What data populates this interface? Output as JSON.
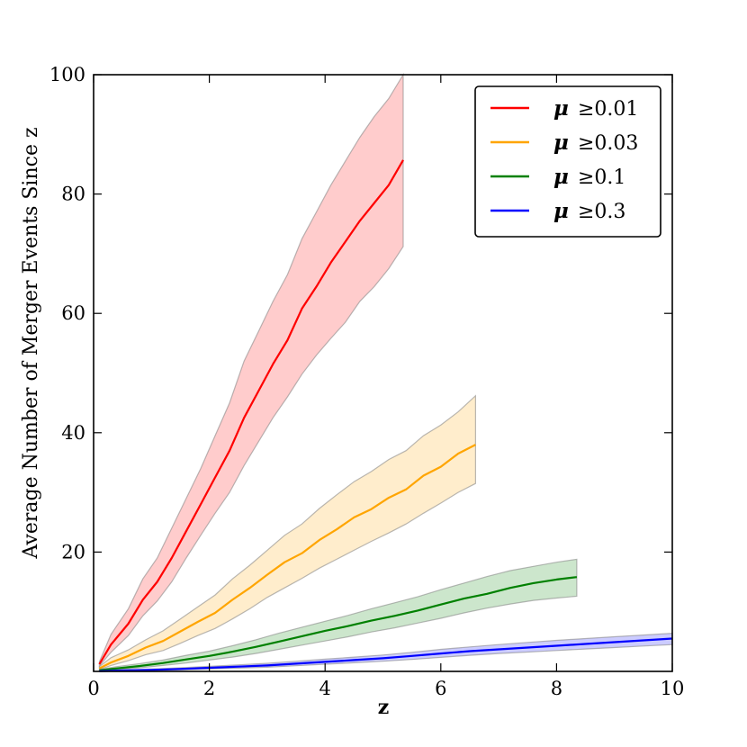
{
  "chart_data": {
    "type": "line",
    "title": "",
    "xlabel": "z",
    "ylabel": "Average Number of Merger Events Since z",
    "xlim": [
      0,
      10
    ],
    "ylim": [
      0,
      100
    ],
    "xticks": [
      "0",
      "2",
      "4",
      "6",
      "8",
      "10"
    ],
    "yticks": [
      "20",
      "40",
      "60",
      "80",
      "100"
    ],
    "legend_position": "top-right",
    "grid": false,
    "series": [
      {
        "name": "μ ≥0.01",
        "legend_symbol": "μ",
        "legend_label": "≥0.01",
        "color": "#ff0000",
        "band_color": "#ff0000",
        "x": [
          0.1,
          0.3,
          0.6,
          0.85,
          1.1,
          1.35,
          1.6,
          1.85,
          2.1,
          2.35,
          2.6,
          2.85,
          3.1,
          3.35,
          3.6,
          3.85,
          4.1,
          4.35,
          4.6,
          4.85,
          5.1,
          5.35
        ],
        "y": [
          1.2,
          4.5,
          8.0,
          12.0,
          15.0,
          19.0,
          23.5,
          28.0,
          32.5,
          37.0,
          42.5,
          47.0,
          51.5,
          55.5,
          60.8,
          64.5,
          68.5,
          72.0,
          75.5,
          78.5,
          81.5,
          85.7
        ],
        "lower": [
          0.9,
          3.2,
          6.0,
          9.3,
          11.8,
          15.0,
          19.0,
          22.8,
          26.5,
          30.0,
          34.5,
          38.5,
          42.5,
          46.0,
          49.8,
          53.0,
          55.8,
          58.5,
          62.0,
          64.5,
          67.5,
          71.2
        ],
        "upper": [
          1.6,
          6.2,
          10.5,
          15.5,
          19.0,
          24.0,
          29.0,
          34.0,
          39.5,
          45.0,
          52.0,
          57.0,
          62.0,
          66.5,
          72.5,
          77.0,
          81.5,
          85.5,
          89.5,
          93.0,
          96.0,
          100.0
        ]
      },
      {
        "name": "μ ≥0.03",
        "legend_symbol": "μ",
        "legend_label": "≥0.03",
        "color": "#ffa500",
        "band_color": "#ffa500",
        "x": [
          0.1,
          0.3,
          0.6,
          0.9,
          1.2,
          1.5,
          1.8,
          2.1,
          2.4,
          2.7,
          3.0,
          3.3,
          3.6,
          3.9,
          4.2,
          4.5,
          4.8,
          5.1,
          5.4,
          5.7,
          6.0,
          6.3,
          6.6
        ],
        "y": [
          0.5,
          1.5,
          2.6,
          4.0,
          5.1,
          6.7,
          8.3,
          9.8,
          12.0,
          14.0,
          16.2,
          18.3,
          19.8,
          22.0,
          23.8,
          25.8,
          27.2,
          29.1,
          30.5,
          32.8,
          34.3,
          36.5,
          38.0
        ],
        "lower": [
          0.3,
          1.0,
          1.8,
          2.8,
          3.5,
          4.7,
          6.0,
          7.2,
          8.8,
          10.5,
          12.4,
          14.0,
          15.6,
          17.3,
          18.8,
          20.3,
          21.8,
          23.2,
          24.7,
          26.5,
          28.2,
          30.0,
          31.5
        ],
        "upper": [
          0.8,
          2.3,
          3.6,
          5.3,
          6.8,
          8.8,
          10.8,
          12.8,
          15.5,
          17.8,
          20.3,
          22.8,
          24.7,
          27.3,
          29.6,
          31.8,
          33.5,
          35.5,
          37.0,
          39.5,
          41.3,
          43.5,
          46.2
        ]
      },
      {
        "name": "μ ≥0.1",
        "legend_symbol": "μ",
        "legend_label": "≥0.1",
        "color": "#008000",
        "band_color": "#008000",
        "x": [
          0.1,
          0.4,
          0.8,
          1.2,
          1.6,
          2.0,
          2.4,
          2.8,
          3.2,
          3.6,
          4.0,
          4.4,
          4.8,
          5.2,
          5.6,
          6.0,
          6.4,
          6.8,
          7.2,
          7.6,
          8.0,
          8.35
        ],
        "y": [
          0.2,
          0.5,
          0.9,
          1.4,
          2.0,
          2.6,
          3.3,
          4.1,
          5.0,
          5.9,
          6.8,
          7.6,
          8.5,
          9.3,
          10.2,
          11.2,
          12.2,
          13.0,
          14.0,
          14.8,
          15.4,
          15.8
        ],
        "lower": [
          0.1,
          0.3,
          0.6,
          1.0,
          1.4,
          1.9,
          2.4,
          3.0,
          3.7,
          4.4,
          5.1,
          5.8,
          6.6,
          7.3,
          8.1,
          8.9,
          9.8,
          10.6,
          11.3,
          11.9,
          12.3,
          12.6
        ],
        "upper": [
          0.3,
          0.8,
          1.3,
          1.9,
          2.7,
          3.4,
          4.3,
          5.3,
          6.4,
          7.4,
          8.4,
          9.4,
          10.5,
          11.5,
          12.5,
          13.7,
          14.8,
          15.9,
          16.9,
          17.6,
          18.3,
          18.8
        ]
      },
      {
        "name": "μ ≥0.3",
        "legend_symbol": "μ",
        "legend_label": "≥0.3",
        "color": "#0000ff",
        "band_color": "#0000ff",
        "x": [
          0.1,
          0.5,
          1.0,
          1.5,
          2.0,
          2.5,
          3.0,
          3.5,
          4.0,
          4.5,
          5.0,
          5.5,
          6.0,
          6.5,
          7.0,
          7.5,
          8.0,
          8.5,
          9.0,
          9.5,
          10.0
        ],
        "y": [
          0.05,
          0.15,
          0.25,
          0.4,
          0.6,
          0.8,
          1.0,
          1.3,
          1.6,
          1.9,
          2.2,
          2.6,
          3.0,
          3.4,
          3.7,
          4.0,
          4.3,
          4.6,
          4.9,
          5.2,
          5.5
        ],
        "lower": [
          0.02,
          0.08,
          0.15,
          0.25,
          0.4,
          0.55,
          0.7,
          0.95,
          1.2,
          1.45,
          1.7,
          2.0,
          2.35,
          2.7,
          3.0,
          3.25,
          3.5,
          3.75,
          4.0,
          4.25,
          4.5
        ],
        "upper": [
          0.1,
          0.25,
          0.4,
          0.6,
          0.85,
          1.1,
          1.35,
          1.7,
          2.05,
          2.4,
          2.75,
          3.2,
          3.7,
          4.1,
          4.5,
          4.85,
          5.2,
          5.5,
          5.8,
          6.1,
          6.4
        ]
      }
    ]
  }
}
